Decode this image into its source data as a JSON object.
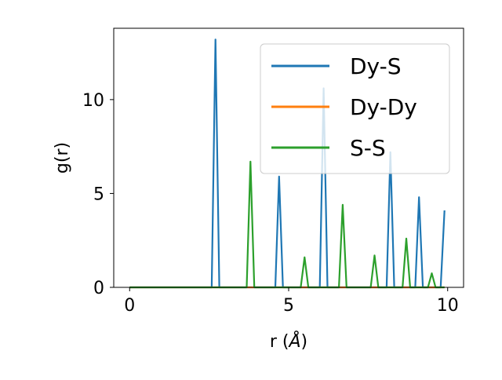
{
  "chart_data": {
    "type": "line",
    "title": "",
    "xlabel": "r (Å)",
    "xlabel_prefix": "r (",
    "xlabel_unit": "Å",
    "xlabel_suffix": ")",
    "ylabel": "g(r)",
    "xlim": [
      -0.5,
      10.5
    ],
    "ylim": [
      0,
      13.8
    ],
    "xticks": [
      0,
      5,
      10
    ],
    "xtick_labels": [
      "0",
      "5",
      "10"
    ],
    "yticks": [
      0,
      5,
      10
    ],
    "ytick_labels": [
      "0",
      "5",
      "10"
    ],
    "grid": false,
    "legend_position": "top-right",
    "series": [
      {
        "name": "Dy-S",
        "color": "#1f77b4",
        "peaks": [
          [
            2.7,
            13.2
          ],
          [
            4.7,
            5.9
          ],
          [
            6.1,
            10.6
          ],
          [
            8.2,
            7.2
          ],
          [
            9.1,
            4.8
          ],
          [
            9.9,
            4.1
          ]
        ]
      },
      {
        "name": "Dy-Dy",
        "color": "#ff7f0e",
        "peaks": []
      },
      {
        "name": "S-S",
        "color": "#2ca02c",
        "peaks": [
          [
            3.8,
            6.7
          ],
          [
            5.5,
            1.6
          ],
          [
            6.7,
            4.4
          ],
          [
            7.7,
            1.7
          ],
          [
            8.7,
            2.6
          ],
          [
            9.5,
            0.75
          ]
        ]
      }
    ],
    "x_range": [
      0,
      9.9
    ],
    "peak_halfwidth": 0.12
  }
}
